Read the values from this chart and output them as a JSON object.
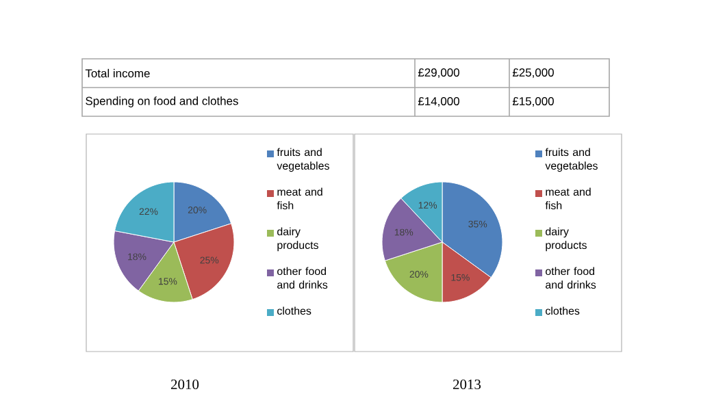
{
  "chart_data": [
    {
      "type": "other",
      "annotations": [
        "Total income",
        "£29,000",
        "£25,000",
        "Spending on food and clothes",
        "£14,000",
        "£15,000"
      ]
    },
    {
      "type": "pie",
      "title": "2010",
      "categories": [
        "fruits and vegetables",
        "meat and fish",
        "dairy products",
        "other food and drinks",
        "clothes"
      ],
      "values": [
        20,
        25,
        15,
        18,
        22
      ],
      "value_labels": [
        "20%",
        "25%",
        "15%",
        "18%",
        "22%"
      ],
      "colors": [
        "#4f81bd",
        "#c0504d",
        "#9bbb59",
        "#8064a2",
        "#4bacc6"
      ],
      "legend": "right"
    },
    {
      "type": "pie",
      "title": "2013",
      "categories": [
        "fruits and vegetables",
        "meat and fish",
        "dairy products",
        "other food and drinks",
        "clothes"
      ],
      "values": [
        35,
        15,
        20,
        18,
        12
      ],
      "value_labels": [
        "35%",
        "15%",
        "20%",
        "18%",
        "12%"
      ],
      "colors": [
        "#4f81bd",
        "#c0504d",
        "#9bbb59",
        "#8064a2",
        "#4bacc6"
      ],
      "legend": "right"
    }
  ]
}
